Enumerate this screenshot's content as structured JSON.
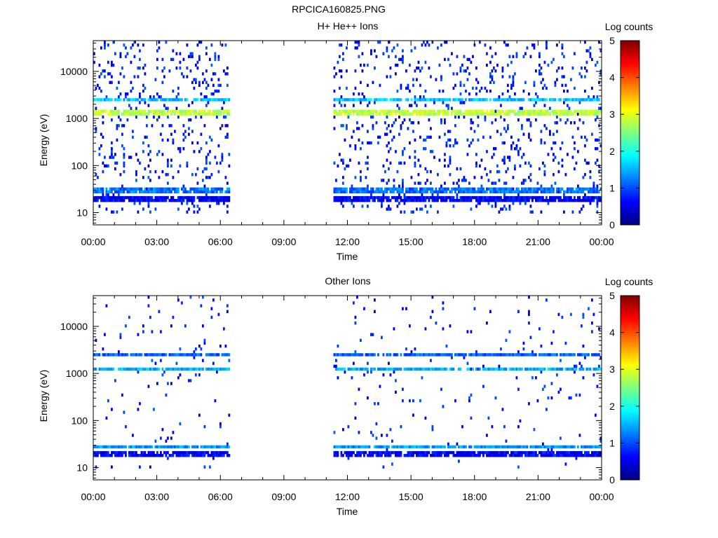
{
  "figure_title": "RPCICA160825.PNG",
  "colors": {
    "colormap": [
      "#00007f",
      "#0000ff",
      "#007fff",
      "#00ffff",
      "#7fff7f",
      "#ffff00",
      "#ff7f00",
      "#ff0000",
      "#7f0000"
    ],
    "gap": "#ffffff"
  },
  "chart_data": [
    {
      "type": "heatmap",
      "title": "H+ He++ Ions",
      "xlabel": "Time",
      "ylabel": "Energy (eV)",
      "xlim_hours": [
        0,
        24
      ],
      "x_tick_labels": [
        "00:00",
        "03:00",
        "06:00",
        "09:00",
        "12:00",
        "15:00",
        "18:00",
        "21:00",
        "00:00"
      ],
      "yscale": "log",
      "ylim": [
        5.5,
        45000
      ],
      "y_tick_labels": [
        "10",
        "100",
        "1000",
        "10000"
      ],
      "colorbar": {
        "label": "Log counts",
        "range": [
          0,
          5
        ],
        "tick_labels": [
          "0",
          "1",
          "2",
          "3",
          "4",
          "5"
        ]
      },
      "data_coverage_hours": [
        [
          0,
          6.4
        ],
        [
          11.3,
          24
        ]
      ],
      "features": [
        {
          "energy_eV": 2600,
          "log_counts": 1.6
        },
        {
          "energy_eV": 1350,
          "log_counts": 2.8
        },
        {
          "energy_eV": 30,
          "log_counts": 1.2
        },
        {
          "energy_eV": 20,
          "log_counts": 0.6
        }
      ]
    },
    {
      "type": "heatmap",
      "title": "Other Ions",
      "xlabel": "Time",
      "ylabel": "Energy (eV)",
      "xlim_hours": [
        0,
        24
      ],
      "x_tick_labels": [
        "00:00",
        "03:00",
        "06:00",
        "09:00",
        "12:00",
        "15:00",
        "18:00",
        "21:00",
        "00:00"
      ],
      "yscale": "log",
      "ylim": [
        5.5,
        45000
      ],
      "y_tick_labels": [
        "10",
        "100",
        "1000",
        "10000"
      ],
      "colorbar": {
        "label": "Log counts",
        "range": [
          0,
          5
        ],
        "tick_labels": [
          "0",
          "1",
          "2",
          "3",
          "4",
          "5"
        ]
      },
      "data_coverage_hours": [
        [
          0,
          6.4
        ],
        [
          11.3,
          24
        ]
      ],
      "features": [
        {
          "energy_eV": 2600,
          "log_counts": 1.1
        },
        {
          "energy_eV": 1250,
          "log_counts": 1.5
        },
        {
          "energy_eV": 28,
          "log_counts": 1.4
        },
        {
          "energy_eV": 20,
          "log_counts": 0.6
        }
      ]
    }
  ]
}
